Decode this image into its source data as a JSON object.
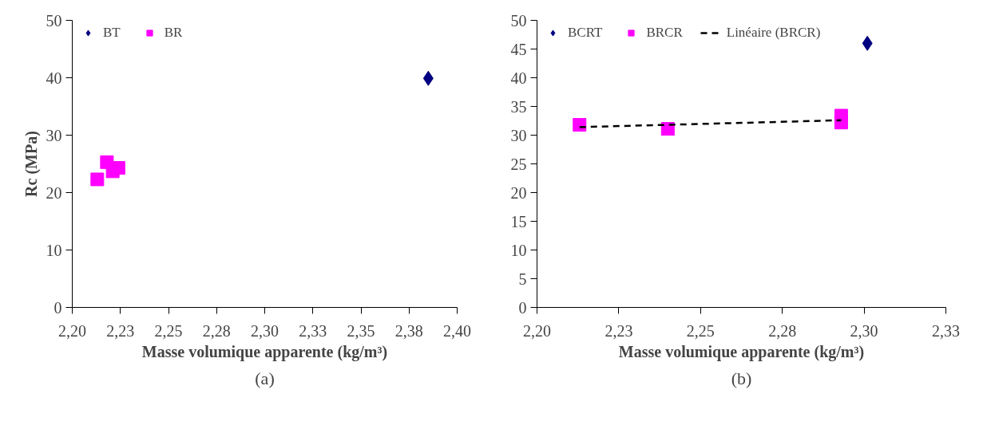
{
  "chart_data": [
    {
      "type": "scatter",
      "xlabel": "Masse volumique apparente (kg/m³)",
      "ylabel": "Rc (MPa)",
      "annotations": [
        "(a)"
      ],
      "xlim": [
        2.2,
        2.4
      ],
      "ylim": [
        0,
        50
      ],
      "xticks": [
        {
          "value": 2.2,
          "label": "2,20"
        },
        {
          "value": 2.225,
          "label": "2,23"
        },
        {
          "value": 2.25,
          "label": "2,25"
        },
        {
          "value": 2.275,
          "label": "2,28"
        },
        {
          "value": 2.3,
          "label": "2,30"
        },
        {
          "value": 2.325,
          "label": "2,33"
        },
        {
          "value": 2.35,
          "label": "2,35"
        },
        {
          "value": 2.375,
          "label": "2,38"
        },
        {
          "value": 2.4,
          "label": "2,40"
        }
      ],
      "yticks": [
        0,
        10,
        20,
        30,
        40,
        50
      ],
      "grid": false,
      "legend": "top",
      "series": [
        {
          "name": "BT",
          "color": "#000080",
          "marker": "diamond",
          "x": [
            2.385
          ],
          "values": [
            39.9
          ]
        },
        {
          "name": "BR",
          "color": "#ff00ff",
          "marker": "square",
          "x": [
            2.213,
            2.218,
            2.221,
            2.224
          ],
          "values": [
            22.3,
            25.3,
            23.7,
            24.3
          ]
        }
      ]
    },
    {
      "type": "scatter",
      "xlabel": "Masse volumique apparente (kg/m³)",
      "annotations": [
        "(b)"
      ],
      "xlim": [
        2.2,
        2.325
      ],
      "ylim": [
        0,
        50
      ],
      "xticks": [
        {
          "value": 2.2,
          "label": "2,20"
        },
        {
          "value": 2.225,
          "label": "2,23"
        },
        {
          "value": 2.25,
          "label": "2,25"
        },
        {
          "value": 2.275,
          "label": "2,28"
        },
        {
          "value": 2.3,
          "label": "2,30"
        },
        {
          "value": 2.325,
          "label": "2,33"
        }
      ],
      "yticks": [
        0,
        5,
        10,
        15,
        20,
        25,
        30,
        35,
        40,
        45,
        50
      ],
      "grid": false,
      "legend": "top",
      "series": [
        {
          "name": "BCRT",
          "color": "#000080",
          "marker": "diamond",
          "x": [
            2.301
          ],
          "values": [
            46.0
          ]
        },
        {
          "name": "BRCR",
          "color": "#ff00ff",
          "marker": "square",
          "x": [
            2.213,
            2.24,
            2.293,
            2.293
          ],
          "values": [
            31.8,
            31.1,
            33.4,
            32.2
          ]
        },
        {
          "name": "Linéaire (BRCR)",
          "type": "line",
          "color": "#000000",
          "line_style": "dashed",
          "marker": "none",
          "x": [
            2.213,
            2.293
          ],
          "values": [
            31.4,
            32.6
          ]
        }
      ]
    }
  ]
}
